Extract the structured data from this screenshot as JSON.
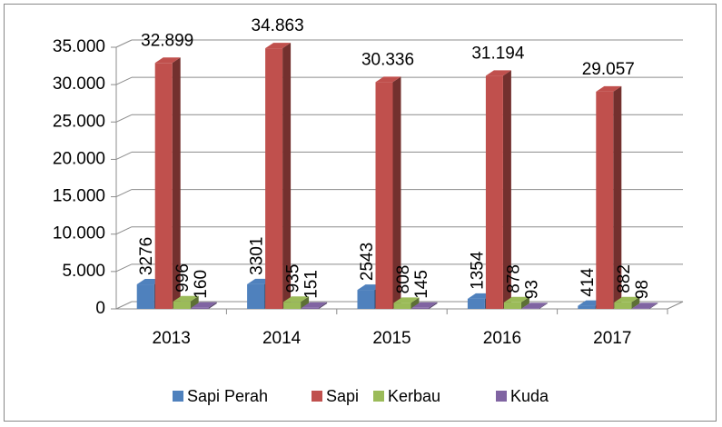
{
  "chart_data": {
    "type": "bar3d",
    "categories": [
      "2013",
      "2014",
      "2015",
      "2016",
      "2017"
    ],
    "series": [
      {
        "name": "Sapi Perah",
        "color": "#4f81bd",
        "values": [
          3276,
          3301,
          2543,
          1354,
          414
        ]
      },
      {
        "name": "Sapi",
        "color": "#c0504d",
        "values": [
          32899,
          34863,
          30336,
          31194,
          29057
        ],
        "value_labels": [
          "32.899",
          "34.863",
          "30.336",
          "31.194",
          "29.057"
        ]
      },
      {
        "name": "Kerbau",
        "color": "#9bbb59",
        "values": [
          996,
          935,
          808,
          878,
          882
        ]
      },
      {
        "name": "Kuda",
        "color": "#8064a2",
        "values": [
          160,
          151,
          145,
          93,
          98
        ]
      }
    ],
    "ylim": [
      0,
      35000
    ],
    "yticks": [
      0,
      {
        "value": 5000,
        "label": "5.000"
      },
      {
        "value": 10000,
        "label": "10.000"
      },
      {
        "value": 15000,
        "label": "15.000"
      },
      {
        "value": 20000,
        "label": "20.000"
      },
      {
        "value": 25000,
        "label": "25.000"
      },
      {
        "value": 30000,
        "label": "30.000"
      },
      {
        "value": 35000,
        "label": "35.000"
      }
    ],
    "grid": true,
    "legend": "bottom"
  }
}
